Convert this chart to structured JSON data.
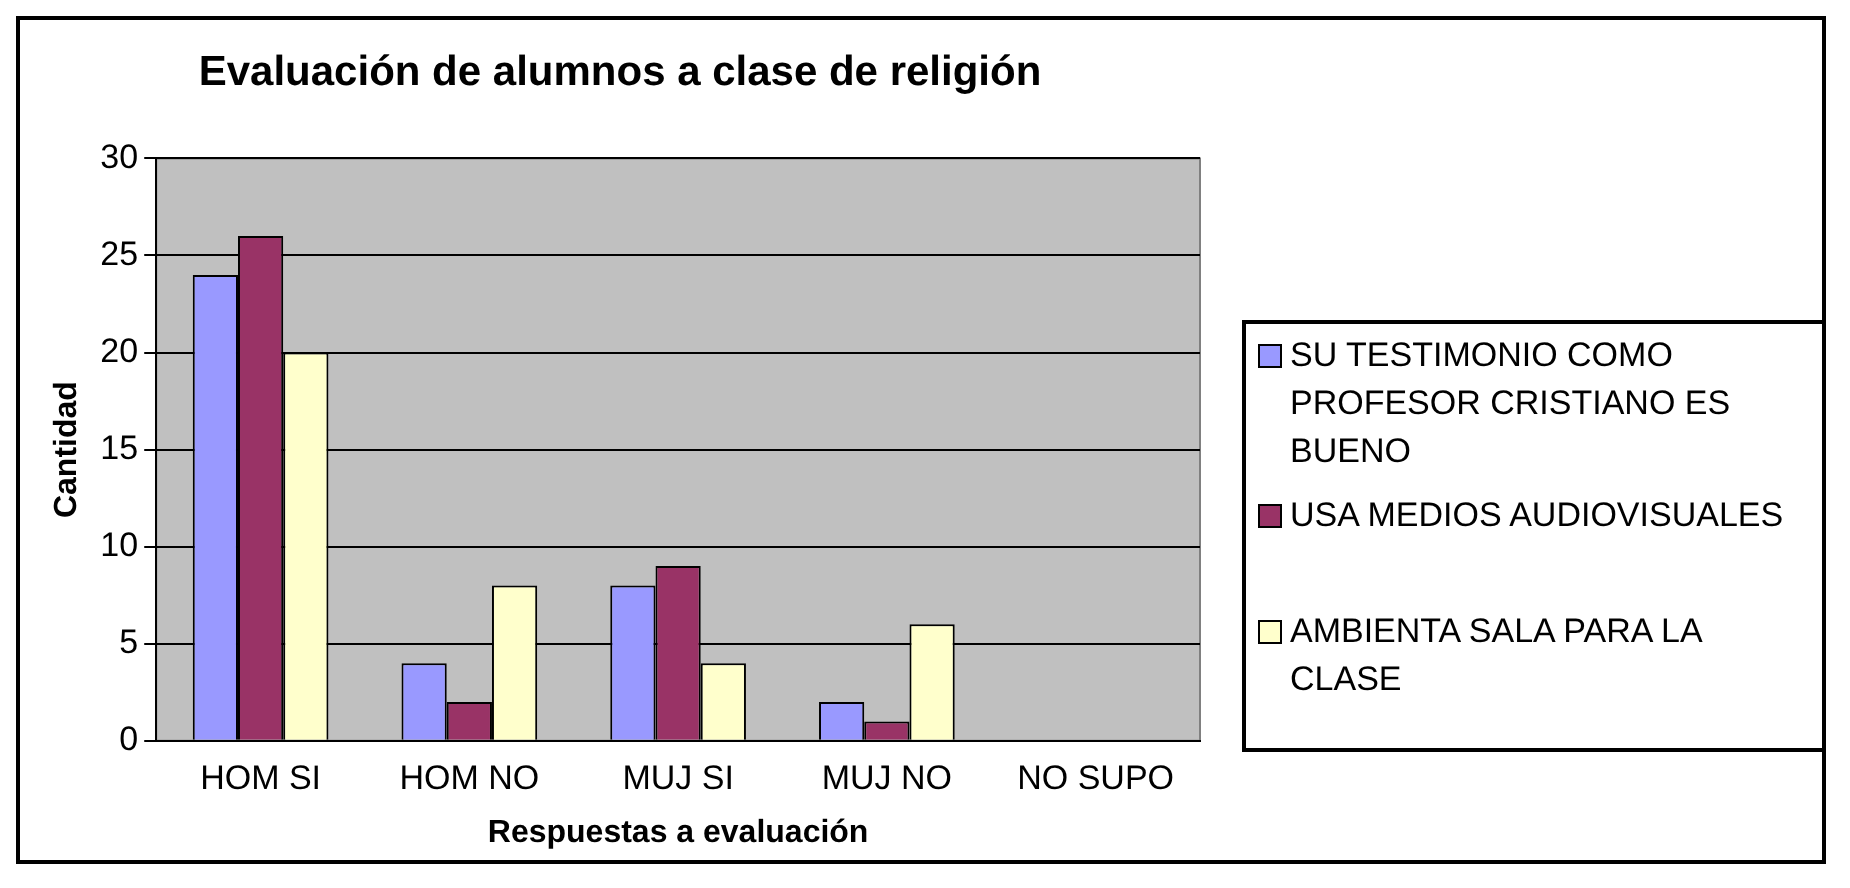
{
  "chart_data": {
    "type": "bar",
    "title": "Evaluación de alumnos a clase de religión",
    "xlabel": "Respuestas a evaluación",
    "ylabel": "Cantidad",
    "categories": [
      "HOM SI",
      "HOM NO",
      "MUJ SI",
      "MUJ NO",
      "NO SUPO"
    ],
    "series": [
      {
        "name": "SU TESTIMONIO COMO PROFESOR CRISTIANO ES BUENO",
        "color": "#9999ff",
        "values": [
          24,
          4,
          8,
          2,
          null
        ]
      },
      {
        "name": "USA MEDIOS AUDIOVISUALES",
        "color": "#993366",
        "values": [
          26,
          2,
          9,
          1,
          null
        ]
      },
      {
        "name": "AMBIENTA  SALA PARA LA CLASE",
        "color": "#ffffcc",
        "values": [
          20,
          8,
          4,
          6,
          null
        ]
      }
    ],
    "ylim": [
      0,
      30
    ],
    "yticks": [
      0,
      5,
      10,
      15,
      20,
      25,
      30
    ],
    "grid": "y",
    "legend": "right"
  }
}
